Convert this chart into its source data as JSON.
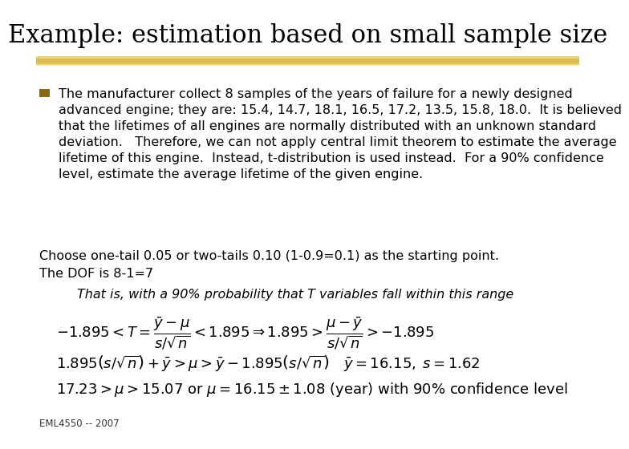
{
  "title": "Example: estimation based on small sample size",
  "bg_color": "#ffffff",
  "highlight_color": "#E8C84A",
  "bullet_color": "#8B6914",
  "bullet_text_lines": [
    "The manufacturer collect 8 samples of the years of failure for a newly designed",
    "advanced engine; they are: 15.4, 14.7, 18.1, 16.5, 17.2, 13.5, 15.8, 18.0.  It is believed",
    "that the lifetimes of all engines are normally distributed with an unknown standard",
    "deviation.   Therefore, we can not apply central limit theorem to estimate the average",
    "lifetime of this engine.  Instead, t-distribution is used instead.  For a 90% confidence",
    "level, estimate the average lifetime of the given engine."
  ],
  "line1": "Choose one-tail 0.05 or two-tails 0.10 (1-0.9=0.1) as the starting point.",
  "line2": "The DOF is 8-1=7",
  "prob_text": "That is, with a 90% probability that T variables fall within this range",
  "footer": "EML4550 -- 2007",
  "title_fontsize": 22,
  "body_fontsize": 11.5,
  "eq_fontsize": 13
}
